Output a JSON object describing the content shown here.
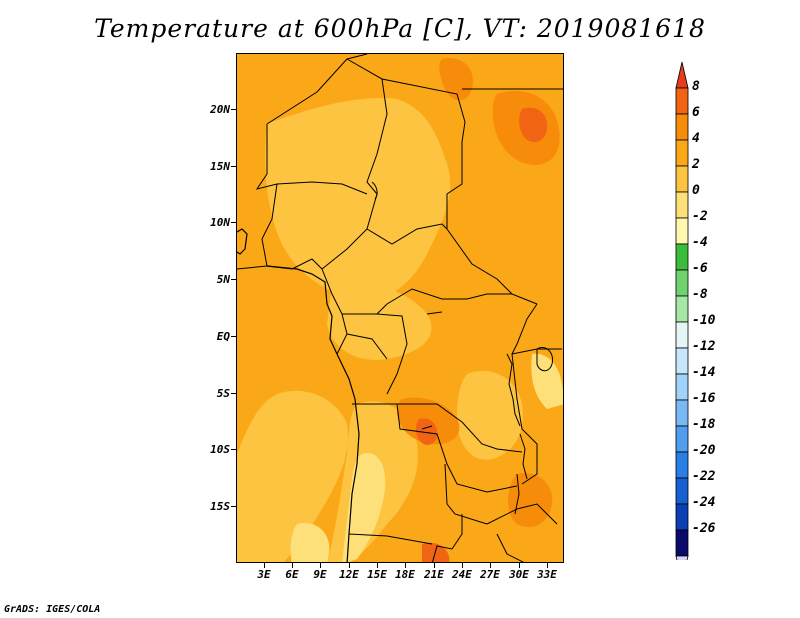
{
  "title": "Temperature at 600hPa [C], VT: 2019081618",
  "footer": "GrADS: IGES/COLA",
  "map": {
    "lat_labels": [
      "20N",
      "15N",
      "10N",
      "5N",
      "EQ",
      "5S",
      "10S",
      "15S"
    ],
    "lon_labels": [
      "3E",
      "6E",
      "9E",
      "12E",
      "15E",
      "18E",
      "21E",
      "24E",
      "27E",
      "30E",
      "33E"
    ]
  },
  "colorbar": {
    "labels": [
      "8",
      "6",
      "4",
      "2",
      "0",
      "-2",
      "-4",
      "-6",
      "-8",
      "-10",
      "-12",
      "-14",
      "-16",
      "-18",
      "-20",
      "-22",
      "-24",
      "-26"
    ],
    "colors": [
      "#e63c1e",
      "#f06414",
      "#f78c0a",
      "#fba818",
      "#fcc440",
      "#fde07a",
      "#fef8b0",
      "#3cbc3c",
      "#6ed26e",
      "#a6e6a6",
      "#e6f6f6",
      "#c8e6fa",
      "#a0d2fa",
      "#78b9f6",
      "#4f9ef0",
      "#2a7fe6",
      "#1660d2",
      "#0a40b4",
      "#0a0a6a",
      "#d8d4f8"
    ]
  }
}
